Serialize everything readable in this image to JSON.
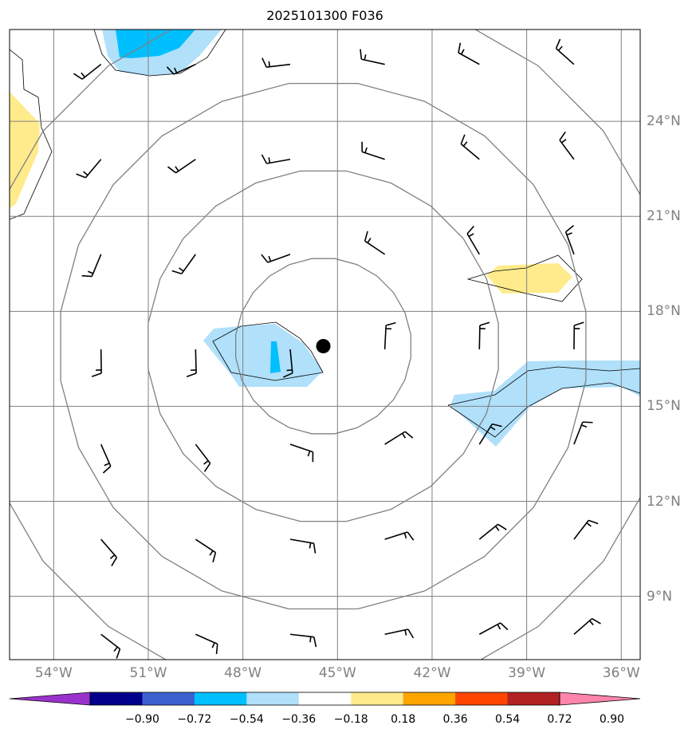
{
  "title": "2025101300 F036",
  "lon_labels": [
    "54°W",
    "51°W",
    "48°W",
    "45°W",
    "42°W",
    "39°W",
    "36°W"
  ],
  "lat_labels": [
    "24°N",
    "21°N",
    "18°N",
    "15°N",
    "12°N",
    "9°N"
  ],
  "colorbar": {
    "labels": [
      "−0.90",
      "−0.72",
      "−0.54",
      "−0.36",
      "−0.18",
      "0.18",
      "0.36",
      "0.54",
      "0.72",
      "0.90"
    ],
    "colors": [
      "#9932cc",
      "#00008b",
      "#3c5fcf",
      "#00bfff",
      "#b0e0fa",
      "#ffffff",
      "#ffeb8c",
      "#ffa500",
      "#ff4500",
      "#b22222",
      "#ff85aa"
    ]
  },
  "map": {
    "lon_range": [
      -55.4,
      -35.4
    ],
    "lat_range": [
      7.0,
      26.9
    ],
    "storm_center": {
      "lon": -45.45,
      "lat": 16.9
    },
    "range_rings_deg": [
      2.8,
      5.6,
      8.4,
      11.2
    ],
    "fill_colors": {
      "pos": "#ffeb8c",
      "neg_light": "#b0e0fa",
      "neg_mid": "#00bfff"
    },
    "wind_barbs": [
      {
        "lon": -52.5,
        "lat": 25.8
      },
      {
        "lon": -49.5,
        "lat": 25.8
      },
      {
        "lon": -46.5,
        "lat": 25.8
      },
      {
        "lon": -43.5,
        "lat": 25.8
      },
      {
        "lon": -40.5,
        "lat": 25.8
      },
      {
        "lon": -37.5,
        "lat": 25.8
      },
      {
        "lon": -52.5,
        "lat": 22.8
      },
      {
        "lon": -49.5,
        "lat": 22.8
      },
      {
        "lon": -46.5,
        "lat": 22.8
      },
      {
        "lon": -43.5,
        "lat": 22.8
      },
      {
        "lon": -40.5,
        "lat": 22.8
      },
      {
        "lon": -37.5,
        "lat": 22.8
      },
      {
        "lon": -52.5,
        "lat": 19.8
      },
      {
        "lon": -49.5,
        "lat": 19.8
      },
      {
        "lon": -46.5,
        "lat": 19.8
      },
      {
        "lon": -43.5,
        "lat": 19.8
      },
      {
        "lon": -40.5,
        "lat": 19.8
      },
      {
        "lon": -37.5,
        "lat": 19.8
      },
      {
        "lon": -52.5,
        "lat": 16.8
      },
      {
        "lon": -49.5,
        "lat": 16.8
      },
      {
        "lon": -46.5,
        "lat": 16.8
      },
      {
        "lon": -43.5,
        "lat": 16.8
      },
      {
        "lon": -40.5,
        "lat": 16.8
      },
      {
        "lon": -37.5,
        "lat": 16.8
      },
      {
        "lon": -52.5,
        "lat": 13.8
      },
      {
        "lon": -49.5,
        "lat": 13.8
      },
      {
        "lon": -46.5,
        "lat": 13.8
      },
      {
        "lon": -43.5,
        "lat": 13.8
      },
      {
        "lon": -40.5,
        "lat": 13.8
      },
      {
        "lon": -37.5,
        "lat": 13.8
      },
      {
        "lon": -52.5,
        "lat": 10.8
      },
      {
        "lon": -49.5,
        "lat": 10.8
      },
      {
        "lon": -46.5,
        "lat": 10.8
      },
      {
        "lon": -43.5,
        "lat": 10.8
      },
      {
        "lon": -40.5,
        "lat": 10.8
      },
      {
        "lon": -37.5,
        "lat": 10.8
      },
      {
        "lon": -52.5,
        "lat": 7.8
      },
      {
        "lon": -49.5,
        "lat": 7.8
      },
      {
        "lon": -46.5,
        "lat": 7.8
      },
      {
        "lon": -43.5,
        "lat": 7.8
      },
      {
        "lon": -40.5,
        "lat": 7.8
      },
      {
        "lon": -37.5,
        "lat": 7.8
      }
    ]
  }
}
